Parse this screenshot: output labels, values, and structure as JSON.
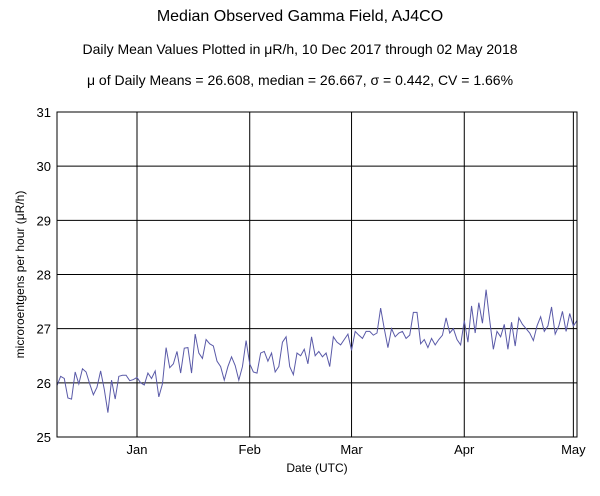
{
  "chart_data": {
    "type": "line",
    "title": "Median Observed Gamma Field, AJ4CO",
    "subtitle": "Daily Mean Values Plotted in μR/h, 10 Dec 2017 through 02 May 2018",
    "stats_line": "μ of Daily Means = 26.608,   median = 26.667,   σ = 0.442,   CV = 1.66%",
    "xlabel": "Date (UTC)",
    "ylabel": "microroentgens per hour (μR/h)",
    "ylim": [
      25,
      31
    ],
    "yticks": [
      "25",
      "26",
      "27",
      "28",
      "29",
      "30",
      "31"
    ],
    "xlim": [
      "2017-12-10",
      "2018-05-02"
    ],
    "xticks": [
      {
        "label": "Jan",
        "date": "2018-01-01"
      },
      {
        "label": "Feb",
        "date": "2018-02-01"
      },
      {
        "label": "Mar",
        "date": "2018-03-01"
      },
      {
        "label": "Apr",
        "date": "2018-04-01"
      },
      {
        "label": "May",
        "date": "2018-05-01"
      }
    ],
    "grid": true,
    "line_color": "#5a5aa8",
    "series": [
      {
        "x_start": "2017-12-10",
        "x_step": "1 day",
        "values": [
          25.95,
          26.12,
          26.08,
          25.72,
          25.7,
          26.2,
          25.98,
          26.26,
          26.2,
          25.98,
          25.78,
          25.92,
          26.22,
          25.88,
          25.45,
          26.05,
          25.7,
          26.12,
          26.14,
          26.14,
          26.04,
          26.06,
          26.1,
          26.0,
          25.96,
          26.18,
          26.08,
          26.22,
          25.74,
          25.98,
          26.65,
          26.28,
          26.35,
          26.58,
          26.18,
          26.64,
          26.65,
          26.18,
          26.9,
          26.55,
          26.45,
          26.8,
          26.72,
          26.68,
          26.4,
          26.3,
          26.05,
          26.3,
          26.48,
          26.32,
          26.05,
          26.3,
          26.78,
          26.35,
          26.2,
          26.18,
          26.55,
          26.58,
          26.4,
          26.55,
          26.2,
          26.3,
          26.75,
          26.85,
          26.3,
          26.15,
          26.55,
          26.5,
          26.62,
          26.35,
          26.85,
          26.5,
          26.58,
          26.48,
          26.55,
          26.3,
          26.85,
          26.75,
          26.7,
          26.8,
          26.9,
          26.6,
          26.95,
          26.88,
          26.82,
          26.95,
          26.95,
          26.88,
          26.92,
          27.38,
          27.0,
          26.65,
          27.0,
          26.85,
          26.92,
          26.95,
          26.82,
          26.88,
          27.3,
          27.3,
          26.72,
          26.8,
          26.65,
          26.82,
          26.7,
          26.8,
          26.88,
          27.2,
          26.92,
          27.0,
          26.8,
          26.7,
          27.15,
          26.75,
          27.42,
          26.92,
          27.48,
          27.1,
          27.72,
          27.15,
          26.62,
          26.95,
          26.85,
          27.08,
          26.62,
          27.12,
          26.68,
          27.2,
          27.08,
          27.0,
          26.92,
          26.78,
          27.05,
          27.22,
          26.95,
          27.05,
          27.4,
          26.9,
          27.05,
          27.32,
          26.95,
          27.28,
          27.05,
          27.15
        ]
      }
    ]
  }
}
